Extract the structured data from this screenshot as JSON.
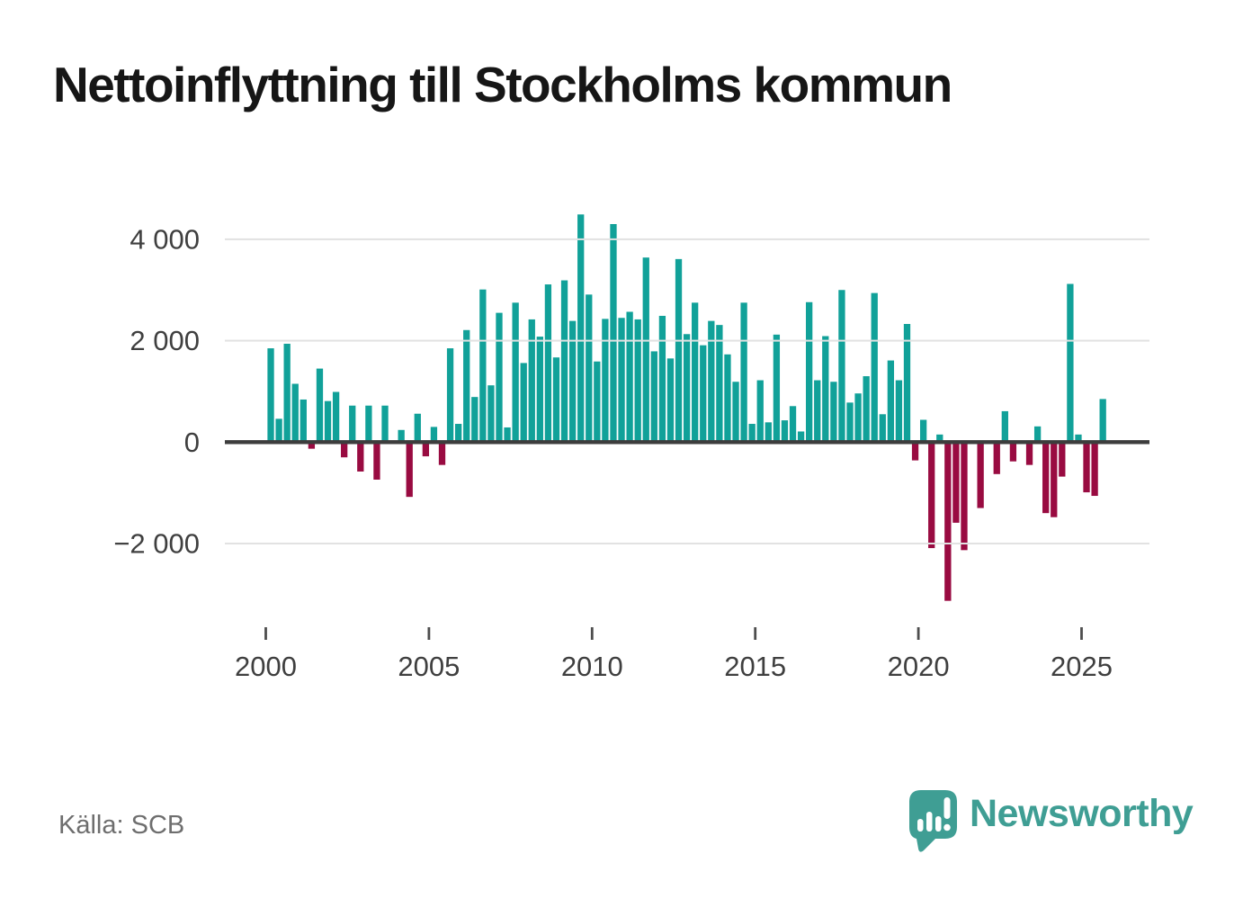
{
  "title": "Nettoinflyttning till Stockholms kommun",
  "source": "Källa: SCB",
  "logo": {
    "wordmark": "Newsworthy",
    "color": "#3f9e94"
  },
  "chart_data": {
    "type": "bar",
    "title": "Nettoinflyttning till Stockholms kommun",
    "xlabel": "",
    "ylabel": "",
    "frequency": "quarterly",
    "period_start": "2000-Q1",
    "period_end": "2025-Q3",
    "grid": true,
    "ylim": [
      -3400,
      4700
    ],
    "positive_color": "#11a199",
    "negative_color": "#990b41",
    "axis_color": "#3d3d3d",
    "gridline_color": "#e2e2e2",
    "tick_text_color": "#3f3f3f",
    "y_ticks": [
      {
        "value": 4000,
        "label": "4 000"
      },
      {
        "value": 2000,
        "label": "2 000"
      },
      {
        "value": 0,
        "label": "0"
      },
      {
        "value": -2000,
        "label": "−2 000"
      }
    ],
    "x_ticks": [
      {
        "year": 2000,
        "label": "2000"
      },
      {
        "year": 2005,
        "label": "2005"
      },
      {
        "year": 2010,
        "label": "2010"
      },
      {
        "year": 2015,
        "label": "2015"
      },
      {
        "year": 2020,
        "label": "2020"
      },
      {
        "year": 2025,
        "label": "2025"
      }
    ],
    "years": [
      {
        "year": 2000,
        "quarters": [
          1850,
          460,
          1940,
          1150
        ]
      },
      {
        "year": 2001,
        "quarters": [
          840,
          -130,
          1450,
          810
        ]
      },
      {
        "year": 2002,
        "quarters": [
          990,
          -300,
          720,
          -580
        ]
      },
      {
        "year": 2003,
        "quarters": [
          720,
          -740,
          720,
          0
        ]
      },
      {
        "year": 2004,
        "quarters": [
          240,
          -1080,
          560,
          -280
        ]
      },
      {
        "year": 2005,
        "quarters": [
          300,
          -450,
          1850,
          360
        ]
      },
      {
        "year": 2006,
        "quarters": [
          2210,
          890,
          3010,
          1120
        ]
      },
      {
        "year": 2007,
        "quarters": [
          2550,
          290,
          2750,
          1560
        ]
      },
      {
        "year": 2008,
        "quarters": [
          2420,
          2080,
          3110,
          1670
        ]
      },
      {
        "year": 2009,
        "quarters": [
          3190,
          2390,
          4490,
          2910
        ]
      },
      {
        "year": 2010,
        "quarters": [
          1590,
          2430,
          4300,
          2450
        ]
      },
      {
        "year": 2011,
        "quarters": [
          2570,
          2420,
          3640,
          1790
        ]
      },
      {
        "year": 2012,
        "quarters": [
          2490,
          1650,
          3610,
          2130
        ]
      },
      {
        "year": 2013,
        "quarters": [
          2750,
          1910,
          2390,
          2310
        ]
      },
      {
        "year": 2014,
        "quarters": [
          1730,
          1190,
          2750,
          360
        ]
      },
      {
        "year": 2015,
        "quarters": [
          1220,
          390,
          2120,
          430
        ]
      },
      {
        "year": 2016,
        "quarters": [
          710,
          210,
          2760,
          1220
        ]
      },
      {
        "year": 2017,
        "quarters": [
          2090,
          1190,
          3000,
          780
        ]
      },
      {
        "year": 2018,
        "quarters": [
          960,
          1300,
          2940,
          550
        ]
      },
      {
        "year": 2019,
        "quarters": [
          1610,
          1220,
          2330,
          -360
        ]
      },
      {
        "year": 2020,
        "quarters": [
          440,
          -2090,
          150,
          -3130
        ]
      },
      {
        "year": 2021,
        "quarters": [
          -1590,
          -2130,
          0,
          -1300
        ]
      },
      {
        "year": 2022,
        "quarters": [
          0,
          -630,
          610,
          -380
        ]
      },
      {
        "year": 2023,
        "quarters": [
          0,
          -450,
          310,
          -1400
        ]
      },
      {
        "year": 2024,
        "quarters": [
          -1480,
          -680,
          3120,
          150
        ]
      },
      {
        "year": 2025,
        "quarters": [
          -990,
          -1060,
          850
        ]
      }
    ]
  }
}
